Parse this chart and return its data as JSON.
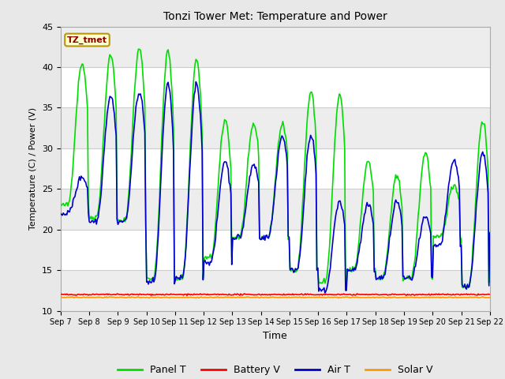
{
  "title": "Tonzi Tower Met: Temperature and Power",
  "xlabel": "Time",
  "ylabel": "Temperature (C) / Power (V)",
  "ylim": [
    10,
    45
  ],
  "annotation_text": "TZ_tmet",
  "annotation_color": "#8B0000",
  "annotation_bg": "#FFFFCC",
  "annotation_border": "#B8960C",
  "bg_color": "#E8E8E8",
  "plot_bg": "#FFFFFF",
  "series": {
    "Panel T": {
      "color": "#00DD00",
      "linewidth": 1.2
    },
    "Battery V": {
      "color": "#FF0000",
      "linewidth": 1.2
    },
    "Air T": {
      "color": "#0000CC",
      "linewidth": 1.2
    },
    "Solar V": {
      "color": "#FF9900",
      "linewidth": 1.2
    }
  },
  "tick_dates": [
    "Sep 7",
    "Sep 8",
    "Sep 9",
    "Sep 10",
    "Sep 11",
    "Sep 12",
    "Sep 13",
    "Sep 14",
    "Sep 15",
    "Sep 16",
    "Sep 17",
    "Sep 18",
    "Sep 19",
    "Sep 20",
    "Sep 21",
    "Sep 22"
  ],
  "yticks": [
    10,
    15,
    20,
    25,
    30,
    35,
    40,
    45
  ],
  "num_points": 480,
  "days": 15
}
